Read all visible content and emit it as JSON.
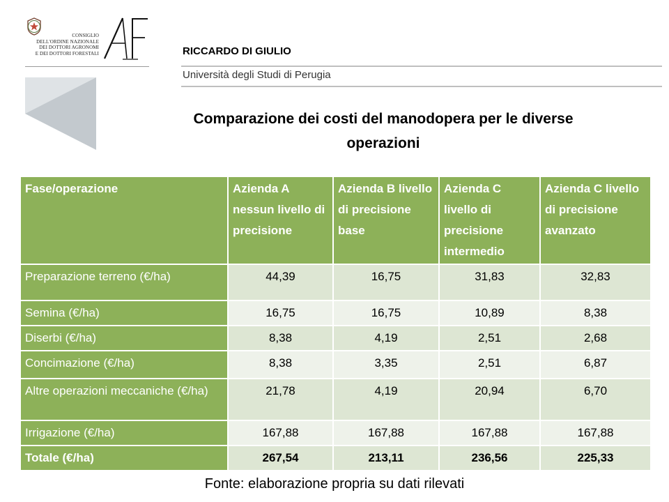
{
  "logo": {
    "council_lines": [
      "CONSIGLIO",
      "DELL'ORDINE NAZIONALE",
      "DEI DOTTORI AGRONOMI",
      "E DEI DOTTORI FORESTALI"
    ],
    "emblem_icon": "italian-republic-emblem-icon",
    "mark_icon": "af-monogram-icon",
    "decor_icon": "grey-chevron-icon",
    "colors": {
      "chevron_light": "#dfe3e6",
      "chevron_dark": "#c3c9ce"
    }
  },
  "header": {
    "author": "RICCARDO DI GIULIO",
    "affiliation": "Università degli Studi di Perugia"
  },
  "title_lines": [
    "Comparazione dei costi del manodopera per le diverse",
    "operazioni"
  ],
  "table": {
    "colors": {
      "header_green": "#8db159",
      "row_dark": "#dde6d3",
      "row_light": "#eef2ea"
    },
    "columns": [
      "Fase/operazione",
      "Azienda A nessun livello di precisione",
      "Azienda B livello di precisione base",
      "Azienda C livello di precisione intermedio",
      "Azienda C livello di precisione avanzato"
    ],
    "rows": [
      {
        "label": "Preparazione terreno (€/ha)",
        "values": [
          "44,39",
          "16,75",
          "31,83",
          "32,83"
        ]
      },
      {
        "label": "Semina (€/ha)",
        "values": [
          "16,75",
          "16,75",
          "10,89",
          "8,38"
        ]
      },
      {
        "label": "Diserbi (€/ha)",
        "values": [
          "8,38",
          "4,19",
          "2,51",
          "2,68"
        ]
      },
      {
        "label": "Concimazione (€/ha)",
        "values": [
          "8,38",
          "3,35",
          "2,51",
          "6,87"
        ]
      },
      {
        "label": "Altre operazioni meccaniche (€/ha)",
        "values": [
          "21,78",
          "4,19",
          "20,94",
          "6,70"
        ]
      },
      {
        "label": "Irrigazione (€/ha)",
        "values": [
          "167,88",
          "167,88",
          "167,88",
          "167,88"
        ]
      }
    ],
    "total": {
      "label": "Totale (€/ha)",
      "values": [
        "267,54",
        "213,11",
        "236,56",
        "225,33"
      ]
    }
  },
  "source": "Fonte: elaborazione propria su dati rilevati"
}
